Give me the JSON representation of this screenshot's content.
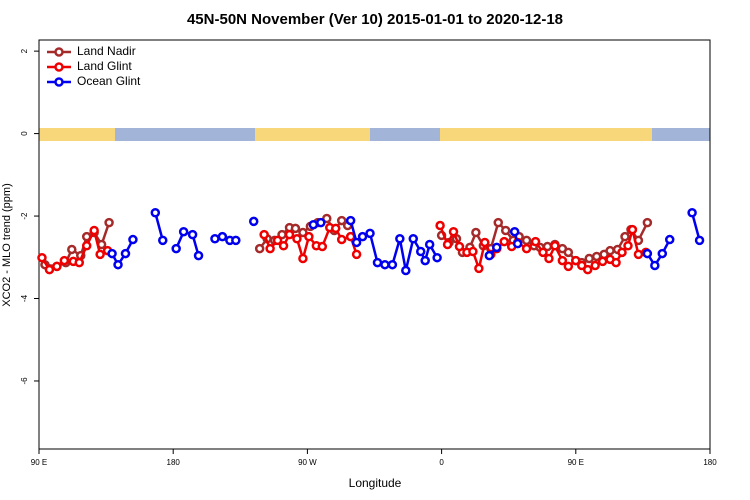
{
  "chart_data": {
    "type": "line",
    "title": "45N-50N November (Ver 10)   2015-01-01 to 2020-12-18",
    "x_label": "Longitude",
    "y_label": "XCO2 - MLO trend (ppm)",
    "xlim": [
      90,
      540
    ],
    "xticks": [
      {
        "value": 90,
        "label": "90 E"
      },
      {
        "value": 180,
        "label": "180"
      },
      {
        "value": 270,
        "label": "90 W"
      },
      {
        "value": 360,
        "label": "0"
      },
      {
        "value": 450,
        "label": "90 E"
      },
      {
        "value": 540,
        "label": "180"
      }
    ],
    "ylim": [
      -7.65,
      2.27
    ],
    "yticks": [
      2,
      0,
      -2,
      -4,
      -6
    ],
    "legend": "top-left",
    "series": [
      {
        "name": "Land Nadir",
        "color": "#a52a2a",
        "x": [
          94,
          102,
          108,
          112,
          118,
          122,
          127,
          132,
          137,
          null,
          238,
          243,
          248,
          253,
          258,
          262,
          267,
          272,
          277,
          283,
          288,
          293,
          297,
          null,
          360,
          365,
          370,
          374,
          379,
          383,
          388,
          393,
          398,
          403,
          408,
          412,
          417,
          422,
          426,
          431,
          436,
          441,
          445,
          450,
          454,
          459,
          464,
          469,
          473,
          478,
          483,
          487,
          492,
          498
        ],
        "values": [
          -3.18,
          -3.22,
          -3.13,
          -2.81,
          -2.96,
          -2.5,
          -2.4,
          -2.69,
          -2.16,
          null,
          -2.79,
          -2.55,
          -2.59,
          -2.45,
          -2.28,
          -2.3,
          -2.4,
          -2.25,
          -2.16,
          -2.06,
          -2.35,
          -2.11,
          -2.23,
          null,
          -2.47,
          -2.64,
          -2.55,
          -2.88,
          -2.76,
          -2.4,
          -2.72,
          -2.79,
          -2.16,
          -2.35,
          -2.59,
          -2.5,
          -2.59,
          -2.72,
          -2.76,
          -2.74,
          -2.69,
          -2.79,
          -2.88,
          -3.08,
          -3.13,
          -3.03,
          -2.98,
          -2.93,
          -2.84,
          -2.81,
          -2.5,
          -2.33,
          -2.59,
          -2.16
        ]
      },
      {
        "name": "Land Glint",
        "color": "#ee0000",
        "x": [
          92,
          97,
          102,
          107,
          113,
          117,
          122,
          127,
          131,
          136,
          null,
          241,
          245,
          250,
          254,
          258,
          263,
          267,
          271,
          276,
          280,
          285,
          289,
          293,
          299,
          303,
          null,
          359,
          364,
          368,
          372,
          377,
          381,
          385,
          389,
          393,
          397,
          402,
          407,
          411,
          417,
          423,
          428,
          432,
          436,
          441,
          445,
          450,
          454,
          458,
          463,
          468,
          473,
          477,
          481,
          485,
          488,
          492,
          497
        ],
        "values": [
          -3.01,
          -3.3,
          -3.22,
          -3.08,
          -3.1,
          -3.13,
          -2.72,
          -2.35,
          -2.93,
          -2.84,
          null,
          -2.45,
          -2.79,
          -2.59,
          -2.72,
          -2.45,
          -2.55,
          -3.03,
          -2.5,
          -2.72,
          -2.74,
          -2.28,
          -2.3,
          -2.57,
          -2.5,
          -2.93,
          null,
          -2.23,
          -2.69,
          -2.38,
          -2.74,
          -2.88,
          -2.86,
          -3.27,
          -2.64,
          -2.93,
          -2.79,
          -2.62,
          -2.74,
          -2.64,
          -2.79,
          -2.62,
          -2.88,
          -3.03,
          -2.72,
          -3.08,
          -3.22,
          -3.08,
          -3.2,
          -3.3,
          -3.2,
          -3.1,
          -3.05,
          -3.13,
          -2.88,
          -2.72,
          -2.33,
          -2.93,
          -2.88
        ]
      },
      {
        "name": "Ocean Glint",
        "color": "#0000ee",
        "x": [
          139,
          143,
          148,
          153,
          null,
          168,
          173,
          null,
          182,
          187,
          193,
          197,
          null,
          208,
          213,
          218,
          222,
          null,
          234,
          null,
          274,
          279,
          null,
          299,
          303,
          307,
          312,
          317,
          322,
          327,
          332,
          336,
          341,
          346,
          349,
          352,
          357,
          null,
          392,
          397,
          null,
          409,
          411,
          null,
          498,
          503,
          508,
          513,
          null,
          528,
          533
        ],
        "values": [
          -2.91,
          -3.18,
          -2.91,
          -2.57,
          null,
          -1.92,
          -2.59,
          null,
          -2.79,
          -2.38,
          -2.45,
          -2.96,
          null,
          -2.55,
          -2.5,
          -2.59,
          -2.59,
          null,
          -2.13,
          null,
          -2.21,
          -2.16,
          null,
          -2.11,
          -2.64,
          -2.5,
          -2.42,
          -3.13,
          -3.18,
          -3.18,
          -2.55,
          -3.32,
          -2.55,
          -2.86,
          -3.08,
          -2.69,
          -3.01,
          null,
          -2.96,
          -2.76,
          null,
          -2.38,
          -2.67,
          null,
          -2.91,
          -3.2,
          -2.91,
          -2.57,
          null,
          -1.92,
          -2.59
        ]
      }
    ]
  }
}
